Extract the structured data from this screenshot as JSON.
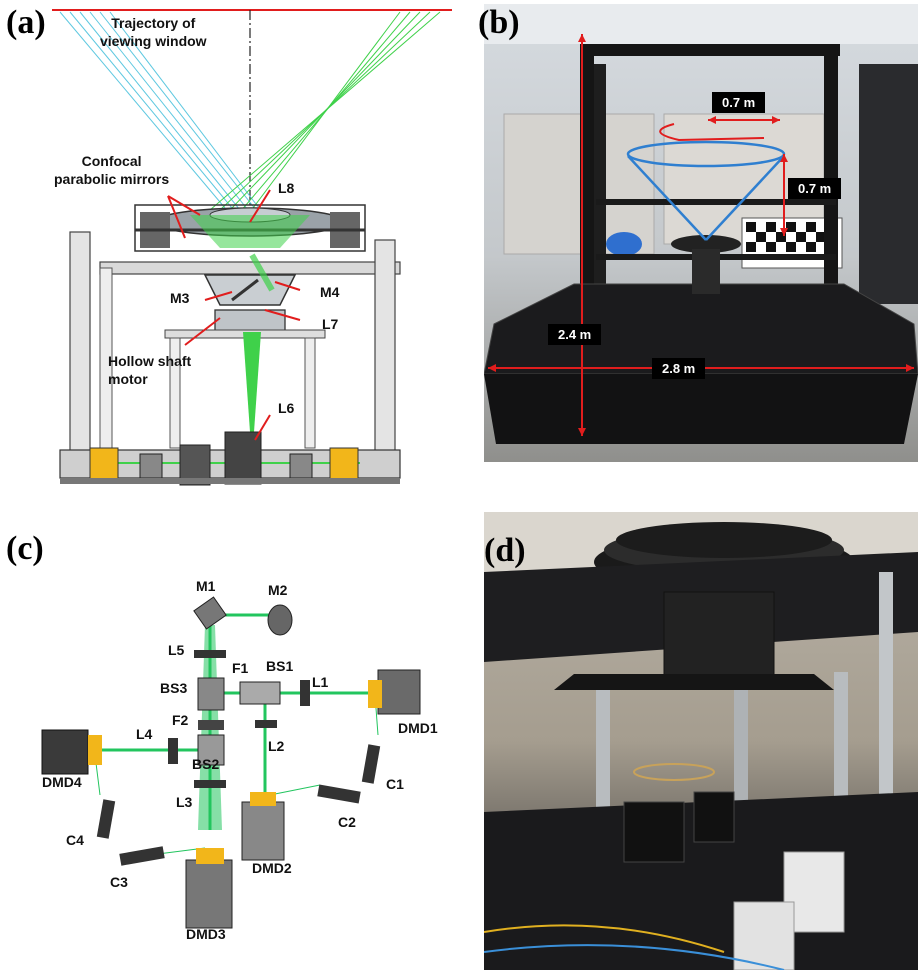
{
  "panel_a": {
    "label": "(a)",
    "text_trajectory": "Trajectory of\nviewing window",
    "text_mirrors": "Confocal\nparabolic mirrors",
    "text_motor": "Hollow shaft\nmotor",
    "L8": "L8",
    "M3": "M3",
    "M4": "M4",
    "L7": "L7",
    "L6": "L6"
  },
  "panel_b": {
    "label": "(b)",
    "dim_07_top": "0.7 m",
    "dim_07_side": "0.7 m",
    "dim_24": "2.4 m",
    "dim_28": "2.8 m"
  },
  "panel_c": {
    "label": "(c)",
    "M1": "M1",
    "M2": "M2",
    "L5": "L5",
    "F1": "F1",
    "BS1": "BS1",
    "L1": "L1",
    "BS3": "BS3",
    "DMD1": "DMD1",
    "F2": "F2",
    "L4": "L4",
    "L2": "L2",
    "DMD4": "DMD4",
    "BS2": "BS2",
    "C1": "C1",
    "L3": "L3",
    "C2": "C2",
    "C4": "C4",
    "DMD2": "DMD2",
    "C3": "C3",
    "DMD3": "DMD3"
  },
  "panel_d": {
    "label": "(d)"
  },
  "colors": {
    "beam_green": "#22c55e",
    "ray_cyan": "#5ec8e0",
    "arrow_red": "#e11d1d",
    "trace_blue": "#2f7fd0",
    "dmd_yellow": "#f2b61a"
  }
}
